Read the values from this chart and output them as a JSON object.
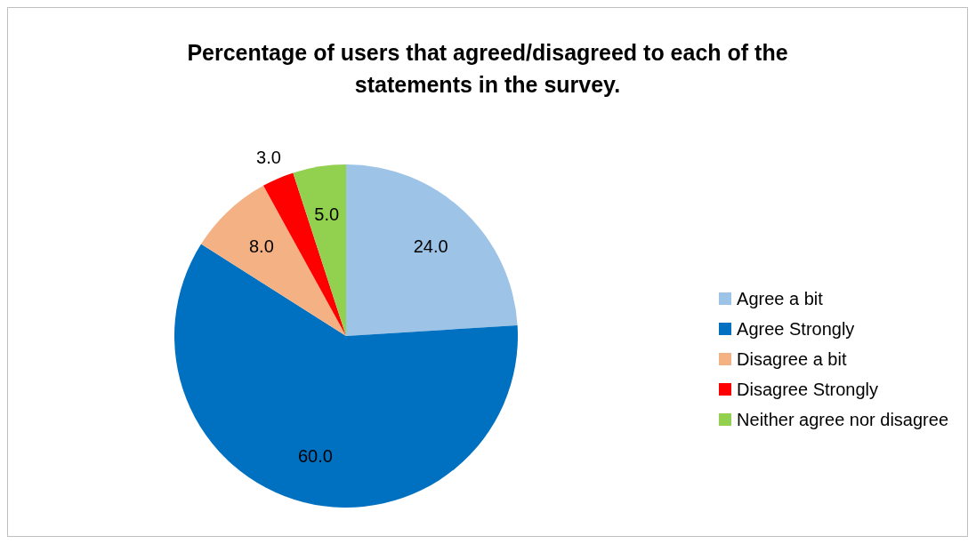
{
  "chart_data": {
    "type": "pie",
    "title": "Percentage of users that agreed/disagreed to each of the statements in the survey.",
    "categories": [
      "Agree a bit",
      "Agree Strongly",
      "Disagree a bit",
      "Disagree Strongly",
      "Neither agree nor disagree"
    ],
    "values": [
      24,
      60,
      8,
      3,
      5
    ],
    "value_labels": [
      "24.0",
      "60.0",
      "8.0",
      "3.0",
      "5.0"
    ],
    "colors": [
      "#9dc3e6",
      "#0070c0",
      "#f4b183",
      "#ff0000",
      "#92d050"
    ],
    "legend": "right"
  }
}
